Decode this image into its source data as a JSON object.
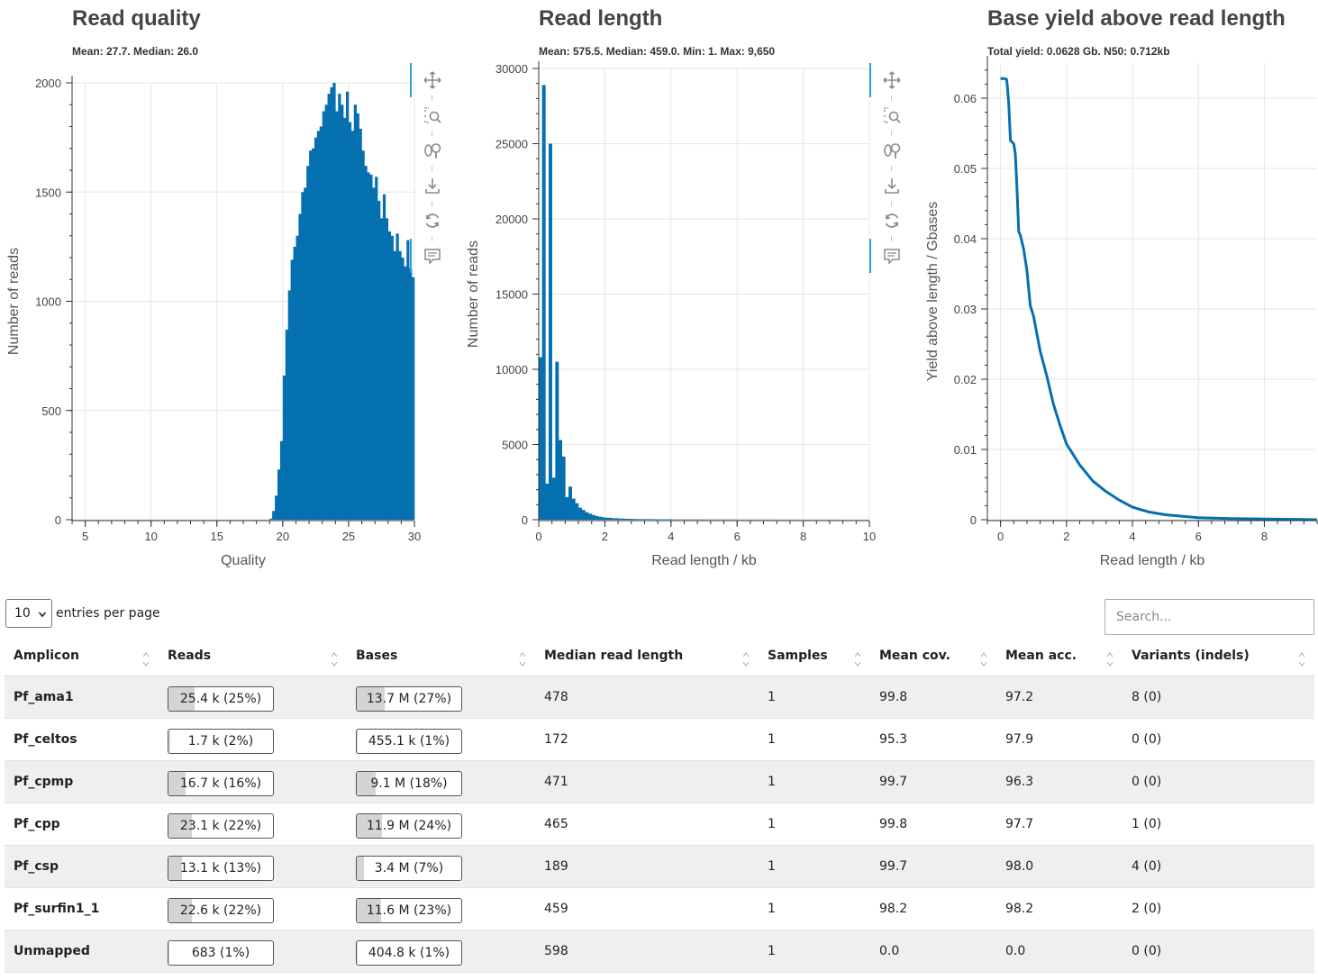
{
  "plots": [
    {
      "id": "quality",
      "title": "Read quality",
      "subtitle": "Mean: 27.7. Median: 26.0",
      "xlabel": "Quality",
      "ylabel": "Number of reads",
      "color": "#0570b0"
    },
    {
      "id": "length",
      "title": "Read length",
      "subtitle": "Mean: 575.5. Median: 459.0. Min: 1. Max: 9,650",
      "xlabel": "Read length / kb",
      "ylabel": "Number of reads",
      "color": "#0570b0"
    },
    {
      "id": "yield",
      "title": "Base yield above read length",
      "subtitle": "Total yield: 0.0628 Gb.  N50: 0.712kb",
      "xlabel": "Read length / kb",
      "ylabel": "Yield above length / Gbases",
      "color": "#0570b0"
    }
  ],
  "toolbar": {
    "icons": [
      "pan-icon",
      "box-zoom-icon",
      "wheel-zoom-icon",
      "save-icon",
      "reset-icon",
      "hover-icon"
    ]
  },
  "chart_data": [
    {
      "type": "bar",
      "title": "Read quality",
      "xlabel": "Quality",
      "ylabel": "Number of reads",
      "xlim": [
        4,
        30
      ],
      "ylim": [
        0,
        2000
      ],
      "xticks": [
        5,
        10,
        15,
        20,
        25,
        30
      ],
      "yticks": [
        0,
        500,
        1000,
        1500,
        2000
      ],
      "grid": true,
      "x": [
        19.0,
        19.2,
        19.4,
        19.6,
        19.8,
        20.0,
        20.2,
        20.4,
        20.6,
        20.8,
        21.0,
        21.2,
        21.4,
        21.6,
        21.8,
        22.0,
        22.2,
        22.4,
        22.6,
        22.8,
        23.0,
        23.2,
        23.4,
        23.6,
        23.8,
        24.0,
        24.2,
        24.4,
        24.6,
        24.8,
        25.0,
        25.2,
        25.4,
        25.6,
        25.8,
        26.0,
        26.2,
        26.4,
        26.6,
        26.8,
        27.0,
        27.2,
        27.4,
        27.6,
        27.8,
        28.0,
        28.2,
        28.4,
        28.6,
        28.8,
        29.0,
        29.2,
        29.4,
        29.6,
        29.8
      ],
      "values": [
        5,
        40,
        110,
        230,
        360,
        660,
        870,
        1050,
        1190,
        1250,
        1300,
        1400,
        1500,
        1520,
        1620,
        1690,
        1700,
        1750,
        1780,
        1800,
        1870,
        1900,
        1950,
        1980,
        2000,
        1870,
        1950,
        1900,
        1840,
        1960,
        1820,
        1780,
        1900,
        1860,
        1790,
        1690,
        1620,
        1590,
        1580,
        1520,
        1570,
        1460,
        1380,
        1490,
        1380,
        1320,
        1300,
        1230,
        1310,
        1230,
        1200,
        1160,
        1280,
        1150,
        1110
      ]
    },
    {
      "type": "bar",
      "title": "Read length",
      "xlabel": "Read length / kb",
      "ylabel": "Number of reads",
      "xlim": [
        0,
        10
      ],
      "ylim": [
        0,
        30000
      ],
      "xticks": [
        0,
        2,
        4,
        6,
        8,
        10
      ],
      "yticks": [
        0,
        5000,
        10000,
        15000,
        20000,
        25000,
        30000
      ],
      "grid": true,
      "x": [
        0.0,
        0.1,
        0.2,
        0.3,
        0.4,
        0.5,
        0.6,
        0.7,
        0.8,
        0.9,
        1.0,
        1.1,
        1.2,
        1.3,
        1.4,
        1.5,
        1.6,
        1.7,
        1.8,
        1.9,
        2.0,
        2.2,
        2.4,
        2.6,
        2.8,
        3.0,
        3.5,
        4.0,
        5.0,
        6.0,
        7.0,
        8.0,
        9.0
      ],
      "values": [
        10800,
        28900,
        2400,
        25000,
        2800,
        10500,
        5300,
        4200,
        1500,
        2200,
        1400,
        1100,
        800,
        650,
        500,
        400,
        320,
        250,
        200,
        160,
        130,
        100,
        80,
        60,
        50,
        40,
        30,
        20,
        15,
        10,
        8,
        5,
        3
      ]
    },
    {
      "type": "line",
      "title": "Base yield above read length",
      "xlabel": "Read length / kb",
      "ylabel": "Yield above length / Gbases",
      "xlim": [
        -0.4,
        9.6
      ],
      "ylim": [
        0,
        0.065
      ],
      "xticks": [
        0,
        2,
        4,
        6,
        8
      ],
      "yticks": [
        0,
        0.01,
        0.02,
        0.03,
        0.04,
        0.05,
        0.06
      ],
      "grid": true,
      "x": [
        0,
        0.1,
        0.18,
        0.2,
        0.25,
        0.3,
        0.4,
        0.45,
        0.5,
        0.55,
        0.6,
        0.7,
        0.8,
        0.9,
        1.0,
        1.2,
        1.4,
        1.6,
        1.8,
        2.0,
        2.4,
        2.8,
        3.2,
        3.6,
        4.0,
        4.5,
        5.0,
        6.0,
        7.0,
        8.0,
        9.0,
        9.6
      ],
      "values": [
        0.0628,
        0.0628,
        0.0627,
        0.062,
        0.059,
        0.054,
        0.0535,
        0.052,
        0.047,
        0.041,
        0.0405,
        0.0385,
        0.0355,
        0.0305,
        0.029,
        0.024,
        0.0205,
        0.0165,
        0.0135,
        0.0108,
        0.0078,
        0.0055,
        0.004,
        0.0028,
        0.0018,
        0.0011,
        0.0007,
        0.0003,
        0.00015,
        0.0001,
        5e-05,
        0.0
      ]
    }
  ],
  "table_controls": {
    "page_length": "10",
    "page_length_label": "entries per page",
    "search_placeholder": "Search..."
  },
  "table": {
    "headers": [
      "Amplicon",
      "Reads",
      "Bases",
      "Median read length",
      "Samples",
      "Mean cov.",
      "Mean acc.",
      "Variants (indels)"
    ],
    "rows": [
      {
        "amplicon": "Pf_ama1",
        "reads": "25.4 k (25%)",
        "reads_pct": 25,
        "bases": "13.7 M (27%)",
        "bases_pct": 27,
        "median": "478",
        "samples": "1",
        "cov": "99.8",
        "acc": "97.2",
        "variants": "8 (0)"
      },
      {
        "amplicon": "Pf_celtos",
        "reads": "1.7 k (2%)",
        "reads_pct": 2,
        "bases": "455.1 k (1%)",
        "bases_pct": 1,
        "median": "172",
        "samples": "1",
        "cov": "95.3",
        "acc": "97.9",
        "variants": "0 (0)"
      },
      {
        "amplicon": "Pf_cpmp",
        "reads": "16.7 k (16%)",
        "reads_pct": 16,
        "bases": "9.1 M (18%)",
        "bases_pct": 18,
        "median": "471",
        "samples": "1",
        "cov": "99.7",
        "acc": "96.3",
        "variants": "0 (0)"
      },
      {
        "amplicon": "Pf_cpp",
        "reads": "23.1 k (22%)",
        "reads_pct": 22,
        "bases": "11.9 M (24%)",
        "bases_pct": 24,
        "median": "465",
        "samples": "1",
        "cov": "99.8",
        "acc": "97.7",
        "variants": "1 (0)"
      },
      {
        "amplicon": "Pf_csp",
        "reads": "13.1 k (13%)",
        "reads_pct": 13,
        "bases": "3.4 M (7%)",
        "bases_pct": 7,
        "median": "189",
        "samples": "1",
        "cov": "99.7",
        "acc": "98.0",
        "variants": "4 (0)"
      },
      {
        "amplicon": "Pf_surfin1_1",
        "reads": "22.6 k (22%)",
        "reads_pct": 22,
        "bases": "11.6 M (23%)",
        "bases_pct": 23,
        "median": "459",
        "samples": "1",
        "cov": "98.2",
        "acc": "98.2",
        "variants": "2 (0)"
      },
      {
        "amplicon": "Unmapped",
        "reads": "683 (1%)",
        "reads_pct": 1,
        "bases": "404.8 k (1%)",
        "bases_pct": 1,
        "median": "598",
        "samples": "1",
        "cov": "0.0",
        "acc": "0.0",
        "variants": "0 (0)"
      }
    ]
  }
}
